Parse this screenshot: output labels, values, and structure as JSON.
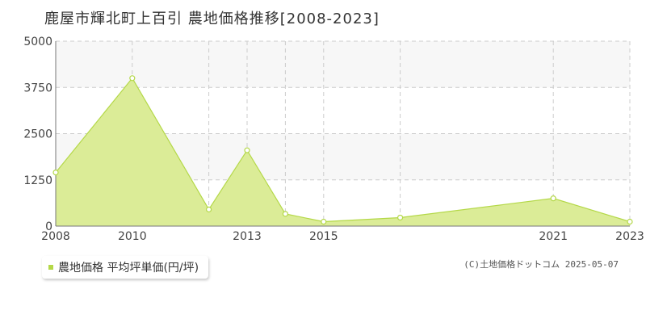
{
  "chart_data": {
    "type": "area",
    "title": "鹿屋市輝北町上百引 農地価格推移[2008-2023]",
    "x": [
      2008,
      2010,
      2012,
      2013,
      2014,
      2015,
      2017,
      2021,
      2023
    ],
    "y_ticks": [
      0,
      1250,
      2500,
      3750,
      5000
    ],
    "x_ticks": [
      2008,
      2010,
      2013,
      2015,
      2021,
      2023
    ],
    "ylim": [
      0,
      5000
    ],
    "xlim": [
      2008,
      2023
    ],
    "grid": true,
    "series": [
      {
        "name": "農地価格 平均坪単価(円/坪)",
        "values": [
          1450,
          4000,
          450,
          2050,
          330,
          120,
          230,
          750,
          120
        ]
      }
    ],
    "legend_position": "bottom-left",
    "colors": {
      "fill": "#dbec97",
      "line": "#b4d848",
      "marker_fill": "#ffffff",
      "legend_swatch": "#b4d848",
      "grid": "#cccccc",
      "band": "#f7f7f7"
    }
  },
  "copyright": "(C)土地価格ドットコム 2025-05-07"
}
